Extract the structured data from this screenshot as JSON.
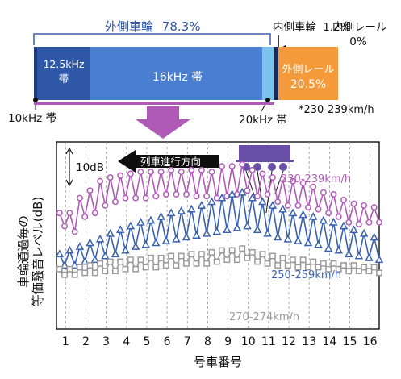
{
  "chart_data": [
    {
      "type": "stacked-bar",
      "segments": [
        {
          "label": "10kHz 帯",
          "share_percent": 0.3,
          "color": "#1f3a78"
        },
        {
          "label": "12.5kHz\n帯",
          "share_percent": 13.8,
          "color": "#2f57a8"
        },
        {
          "label": "16kHz 帯",
          "share_percent": 60.3,
          "color": "#4a7ed0"
        },
        {
          "label": "20kHz 帯",
          "share_percent": 3.9,
          "color": "#7cc3ee"
        },
        {
          "label": "内側車輪",
          "share_percent": 1.2,
          "color": "#1b2a55"
        },
        {
          "label": "外側レール",
          "share_percent": 20.5,
          "color": "#f59a3a"
        },
        {
          "label": "内側レール",
          "share_percent": 0,
          "color": "#f2c77a"
        }
      ],
      "headers": {
        "outer_wheel": "外側車輪",
        "outer_wheel_value": "78.3%",
        "inner_wheel": "内側車輪",
        "inner_wheel_value": "1.2%",
        "inner_rail": "内側レール",
        "inner_rail_value": "0%",
        "outer_rail": "外側レール",
        "outer_rail_value": "20.5%"
      },
      "labels": {
        "band_10k": "10kHz 帯",
        "band_12k_line1": "12.5kHz",
        "band_12k_line2": "帯",
        "band_16k": "16kHz 帯",
        "band_20k": "20kHz 帯",
        "speed_note": "*230-239km/h"
      }
    },
    {
      "type": "line",
      "ylabel_line1": "車輪通過毎の",
      "ylabel_line2": "等価騒音レベル(dB)",
      "xlabel": "号車番号",
      "xticks": [
        "1",
        "2",
        "3",
        "4",
        "5",
        "6",
        "7",
        "8",
        "9",
        "10",
        "11",
        "12",
        "13",
        "14",
        "15",
        "16"
      ],
      "xlim": [
        0.55,
        16.45
      ],
      "ylim": [
        0,
        100
      ],
      "scale_bar": "10dB",
      "direction": "列車進行方向",
      "series": [
        {
          "name": "230-239km/h",
          "color": "#b05ab8",
          "marker": "circle",
          "x": [
            0.7,
            0.95,
            1.2,
            1.45,
            1.7,
            1.95,
            2.2,
            2.45,
            2.7,
            2.95,
            3.2,
            3.45,
            3.7,
            3.95,
            4.2,
            4.45,
            4.7,
            4.95,
            5.2,
            5.45,
            5.7,
            5.95,
            6.2,
            6.45,
            6.7,
            6.95,
            7.2,
            7.45,
            7.7,
            7.95,
            8.2,
            8.45,
            8.7,
            8.95,
            9.2,
            9.45,
            9.7,
            9.95,
            10.2,
            10.45,
            10.7,
            10.95,
            11.2,
            11.45,
            11.7,
            11.95,
            12.2,
            12.45,
            12.7,
            12.95,
            13.2,
            13.45,
            13.7,
            13.95,
            14.2,
            14.45,
            14.7,
            14.95,
            15.2,
            15.45,
            15.7,
            15.95,
            16.2,
            16.45
          ],
          "y": [
            62,
            55,
            62,
            52,
            70,
            60,
            74,
            62,
            79,
            66,
            81,
            68,
            82,
            70,
            83,
            70,
            84,
            70,
            84,
            71,
            84,
            72,
            85,
            72,
            84,
            72,
            85,
            71,
            85,
            71,
            84,
            70,
            87,
            71,
            87,
            72,
            88,
            74,
            85,
            71,
            83,
            72,
            81,
            68,
            80,
            66,
            79,
            66,
            78,
            65,
            76,
            64,
            73,
            62,
            72,
            60,
            69,
            57,
            67,
            56,
            66,
            57,
            65,
            57
          ]
        },
        {
          "name": "250-259km/h",
          "color": "#3a62b0",
          "marker": "triangle",
          "x": [
            0.7,
            0.95,
            1.2,
            1.45,
            1.7,
            1.95,
            2.2,
            2.45,
            2.7,
            2.95,
            3.2,
            3.45,
            3.7,
            3.95,
            4.2,
            4.45,
            4.7,
            4.95,
            5.2,
            5.45,
            5.7,
            5.95,
            6.2,
            6.45,
            6.7,
            6.95,
            7.2,
            7.45,
            7.7,
            7.95,
            8.2,
            8.45,
            8.7,
            8.95,
            9.2,
            9.45,
            9.7,
            9.95,
            10.2,
            10.45,
            10.7,
            10.95,
            11.2,
            11.45,
            11.7,
            11.95,
            12.2,
            12.45,
            12.7,
            12.95,
            13.2,
            13.45,
            13.7,
            13.95,
            14.2,
            14.45,
            14.7,
            14.95,
            15.2,
            15.45,
            15.7,
            15.95,
            16.2,
            16.45
          ],
          "y": [
            40,
            34,
            42,
            34,
            44,
            36,
            46,
            37,
            48,
            39,
            51,
            40,
            53,
            42,
            55,
            44,
            57,
            45,
            58,
            46,
            60,
            47,
            62,
            48,
            63,
            49,
            64,
            50,
            66,
            51,
            68,
            52,
            70,
            53,
            72,
            54,
            73,
            55,
            70,
            53,
            68,
            51,
            66,
            49,
            64,
            48,
            62,
            47,
            61,
            46,
            60,
            45,
            58,
            43,
            57,
            42,
            55,
            40,
            53,
            39,
            51,
            38,
            49,
            37
          ]
        },
        {
          "name": "270-274km/h",
          "color": "#9a9a9a",
          "marker": "square",
          "x": [
            0.7,
            0.95,
            1.2,
            1.45,
            1.7,
            1.95,
            2.2,
            2.45,
            2.7,
            2.95,
            3.2,
            3.45,
            3.7,
            3.95,
            4.2,
            4.45,
            4.7,
            4.95,
            5.2,
            5.45,
            5.7,
            5.95,
            6.2,
            6.45,
            6.7,
            6.95,
            7.2,
            7.45,
            7.7,
            7.95,
            8.2,
            8.45,
            8.7,
            8.95,
            9.2,
            9.45,
            9.7,
            9.95,
            10.2,
            10.45,
            10.7,
            10.95,
            11.2,
            11.45,
            11.7,
            11.95,
            12.2,
            12.45,
            12.7,
            12.95,
            13.2,
            13.45,
            13.7,
            13.95,
            14.2,
            14.45,
            14.7,
            14.95,
            15.2,
            15.45,
            15.7,
            15.95,
            16.2,
            16.45
          ],
          "y": [
            32,
            29,
            32,
            29,
            33,
            30,
            34,
            30,
            35,
            31,
            36,
            31,
            36,
            32,
            37,
            32,
            37,
            33,
            38,
            33,
            38,
            34,
            39,
            34,
            39,
            35,
            40,
            35,
            40,
            35,
            41,
            36,
            42,
            37,
            42,
            37,
            43,
            38,
            41,
            36,
            40,
            35,
            39,
            34,
            38,
            34,
            37,
            33,
            37,
            33,
            36,
            33,
            35,
            32,
            35,
            32,
            34,
            31,
            34,
            31,
            33,
            31,
            33,
            30
          ]
        }
      ]
    }
  ]
}
